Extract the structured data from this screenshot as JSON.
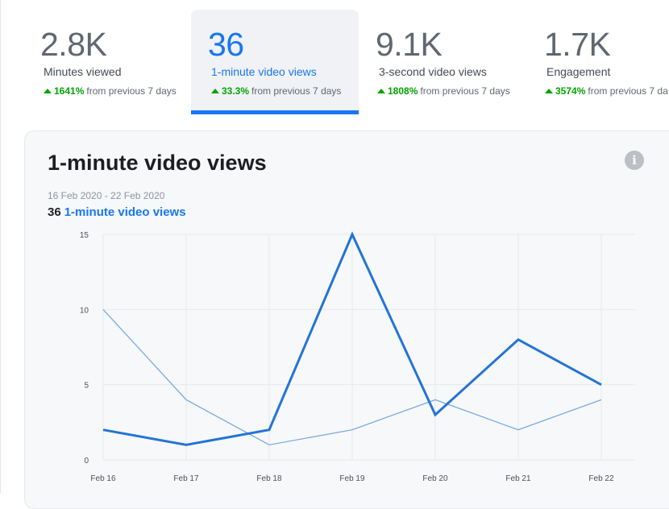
{
  "tabs": [
    {
      "value": "2.8K",
      "label": "Minutes viewed",
      "delta": "1641%",
      "delta_suffix": "from previous 7 days",
      "active": false
    },
    {
      "value": "36",
      "label": "1-minute video views",
      "delta": "33.3%",
      "delta_suffix": "from previous 7 days",
      "active": true
    },
    {
      "value": "9.1K",
      "label": "3-second video views",
      "delta": "1808%",
      "delta_suffix": "from previous 7 days",
      "active": false
    },
    {
      "value": "1.7K",
      "label": "Engagement",
      "delta": "3574%",
      "delta_suffix": "from previous 7 da",
      "active": false
    }
  ],
  "card": {
    "title": "1-minute video views",
    "info_icon": "info-icon",
    "date_range": "16 Feb 2020 - 22 Feb 2020",
    "summary_value": "36",
    "summary_label": "1-minute video views"
  },
  "colors": {
    "accent": "#1877f2",
    "positive": "#00a400",
    "current_series": "#2374d8",
    "previous_series": "#7aabe0"
  },
  "chart_data": {
    "type": "line",
    "categories": [
      "Feb 16",
      "Feb 17",
      "Feb 18",
      "Feb 19",
      "Feb 20",
      "Feb 21",
      "Feb 22"
    ],
    "series": [
      {
        "values": [
          2,
          1,
          2,
          15,
          3,
          8,
          5
        ],
        "style": "bold"
      },
      {
        "values": [
          10,
          4,
          1,
          2,
          4,
          2,
          4
        ],
        "style": "thin"
      }
    ],
    "yticks": [
      0,
      5,
      10,
      15
    ],
    "ylim": [
      0,
      15
    ],
    "grid": true
  }
}
